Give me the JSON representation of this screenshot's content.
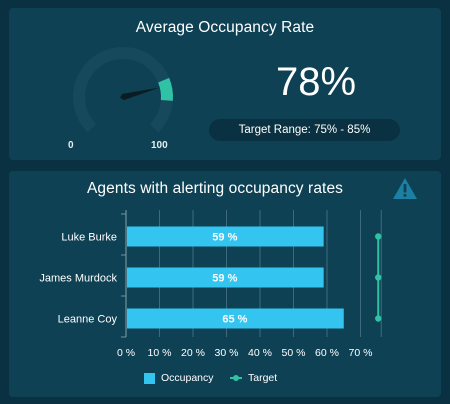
{
  "colors": {
    "page_background": "#0a3141",
    "panel_background": "#0f4155",
    "gauge_track": "#17495c",
    "gauge_fill": "#2fc2a4",
    "bar": "#33c4f0",
    "target": "#2fc2a4",
    "warning": "#1b80a3"
  },
  "occupancy_panel": {
    "title": "Average Occupancy Rate",
    "kpi_value": "78%",
    "target_range": "Target Range: 75% - 85%",
    "gauge": {
      "value": 78,
      "min": 0,
      "max": 100,
      "target_from": 75,
      "target_to": 85,
      "min_label": "0",
      "max_label": "100"
    }
  },
  "alerts_panel": {
    "title": "Agents with alerting occupancy rates",
    "icon": "warning-icon",
    "legend": {
      "occupancy": "Occupancy",
      "target": "Target"
    }
  },
  "chart_data": {
    "type": "bar",
    "orientation": "horizontal",
    "title": "Agents with alerting occupancy rates",
    "categories": [
      "Luke Burke",
      "James Murdock",
      "Leanne Coy"
    ],
    "series": [
      {
        "name": "Occupancy",
        "values": [
          59,
          59,
          65
        ],
        "labels": [
          "59 %",
          "59 %",
          "65 %"
        ]
      },
      {
        "name": "Target",
        "type": "line",
        "values": [
          75,
          75,
          75
        ]
      }
    ],
    "x_ticks": [
      "0 %",
      "10 %",
      "20 %",
      "30 %",
      "40 %",
      "50 %",
      "60 %",
      "70 %"
    ],
    "xlim": [
      0,
      75
    ],
    "grid": true,
    "legend_position": "bottom"
  }
}
